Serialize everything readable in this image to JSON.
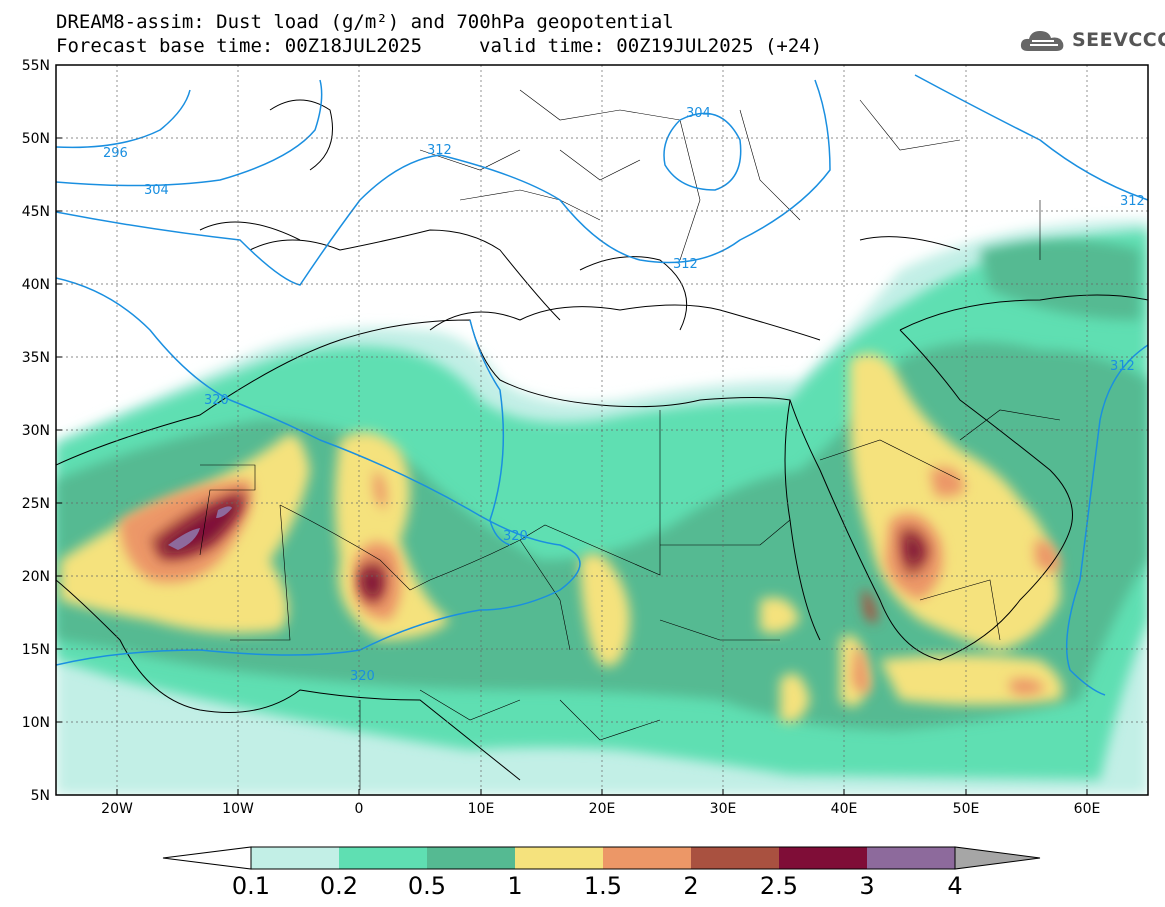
{
  "header": {
    "title_line_1": "DREAM8-assim: Dust load (g/m²) and 700hPa geopotential",
    "title_line_2": "Forecast base time: 00Z18JUL2025",
    "valid_time": "valid time: 00Z19JUL2025 (+24)"
  },
  "logo": {
    "text": "SEEVCCC",
    "icon": "cloud-icon"
  },
  "map": {
    "lat_labels": [
      "55N",
      "50N",
      "45N",
      "40N",
      "35N",
      "30N",
      "25N",
      "20N",
      "15N",
      "10N",
      "5N"
    ],
    "lon_labels": [
      "20W",
      "10W",
      "0",
      "10E",
      "20E",
      "30E",
      "40E",
      "50E",
      "60E"
    ],
    "contour_labels": [
      {
        "text": "296"
      },
      {
        "text": "304"
      },
      {
        "text": "312"
      },
      {
        "text": "304"
      },
      {
        "text": "312"
      },
      {
        "text": "312"
      },
      {
        "text": "320"
      },
      {
        "text": "320"
      },
      {
        "text": "312"
      },
      {
        "text": "320"
      }
    ],
    "contour_color": "#1a8fe0"
  },
  "colorbar": {
    "labels": [
      "0.1",
      "0.2",
      "0.5",
      "1",
      "1.5",
      "2",
      "2.5",
      "3",
      "4"
    ],
    "colors": [
      "#c2efe6",
      "#5fdfb2",
      "#55ba92",
      "#f5e27d",
      "#ec9767",
      "#a95140",
      "#7f0d37",
      "#8d6a9c",
      "#a6a6a6"
    ]
  },
  "legend_units": "g/m²"
}
